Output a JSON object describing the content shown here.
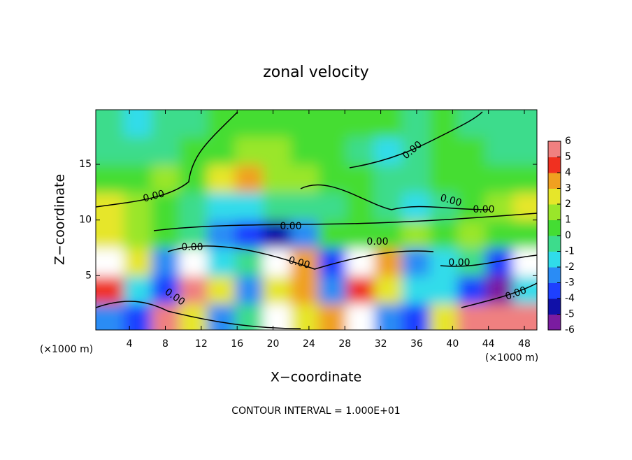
{
  "chart_data": {
    "type": "heatmap",
    "title": "zonal velocity",
    "xlabel": "X−coordinate",
    "ylabel": "Z−coordinate",
    "x_unit": "(×1000 m)",
    "footer": "CONTOUR INTERVAL = 1.000E+01",
    "contour_label": "0.00",
    "xlim": [
      0.25,
      49.4
    ],
    "ylim": [
      0.125,
      19.9
    ],
    "xticks": [
      4,
      8,
      12,
      16,
      20,
      24,
      28,
      32,
      36,
      40,
      44,
      48
    ],
    "yticks": [
      5,
      10,
      15
    ],
    "x": [
      1.8,
      4.9,
      8,
      11.1,
      14.2,
      17.3,
      20.4,
      23.5,
      26.6,
      29.7,
      32.8,
      35.9,
      39,
      42.1,
      45.2,
      48.3
    ],
    "y": [
      18.7,
      16.2,
      13.7,
      11.2,
      8.7,
      6.2,
      3.7,
      1.2
    ],
    "z": [
      [
        -1,
        -1.5,
        -1,
        -0.5,
        0,
        0,
        0.5,
        0.5,
        0,
        0,
        0,
        -0.5,
        0,
        -0.5,
        -1,
        -1
      ],
      [
        -0.5,
        -1,
        -0.5,
        0,
        0.5,
        1,
        1,
        0.5,
        0,
        -1,
        -1.5,
        -0.5,
        0,
        0,
        -0.5,
        -0.5
      ],
      [
        0,
        0.5,
        1,
        0.5,
        2.5,
        3,
        1.5,
        1,
        0.5,
        0,
        -0.5,
        -1,
        0,
        0,
        0.5,
        0
      ],
      [
        2,
        1,
        0,
        -1,
        -1.5,
        -2,
        -1,
        -0.5,
        -0.5,
        0,
        -1,
        -1.5,
        -1,
        0,
        1,
        2
      ],
      [
        2,
        1,
        0.5,
        -1,
        -3,
        -4,
        -5,
        -3,
        0,
        0,
        0,
        1,
        0,
        1,
        0.5,
        0
      ],
      [
        6.5,
        2,
        -3,
        6.5,
        -2,
        -1,
        7,
        3,
        -4,
        7,
        3,
        -3,
        -2,
        -1,
        -4,
        -7
      ],
      [
        4,
        -2,
        -4,
        5,
        2,
        -3,
        2,
        3,
        -3,
        4,
        2,
        -2,
        -2,
        -4,
        -6,
        -2
      ],
      [
        -3,
        -4,
        6,
        2,
        -3,
        -1,
        7,
        2,
        3,
        7,
        -3,
        -4,
        2,
        5,
        6,
        5
      ]
    ],
    "clim": [
      -6,
      6
    ],
    "cticks": [
      -6,
      -5,
      -4,
      -3,
      -2,
      -1,
      0,
      1,
      2,
      3,
      4,
      5,
      6
    ],
    "colors": [
      "#7a1ca0",
      "#1010a8",
      "#1e40ff",
      "#2a8cf5",
      "#30dcea",
      "#3ddc8c",
      "#44dd33",
      "#9ae62a",
      "#e6e62a",
      "#f0a020",
      "#f03020",
      "#f08080"
    ]
  }
}
